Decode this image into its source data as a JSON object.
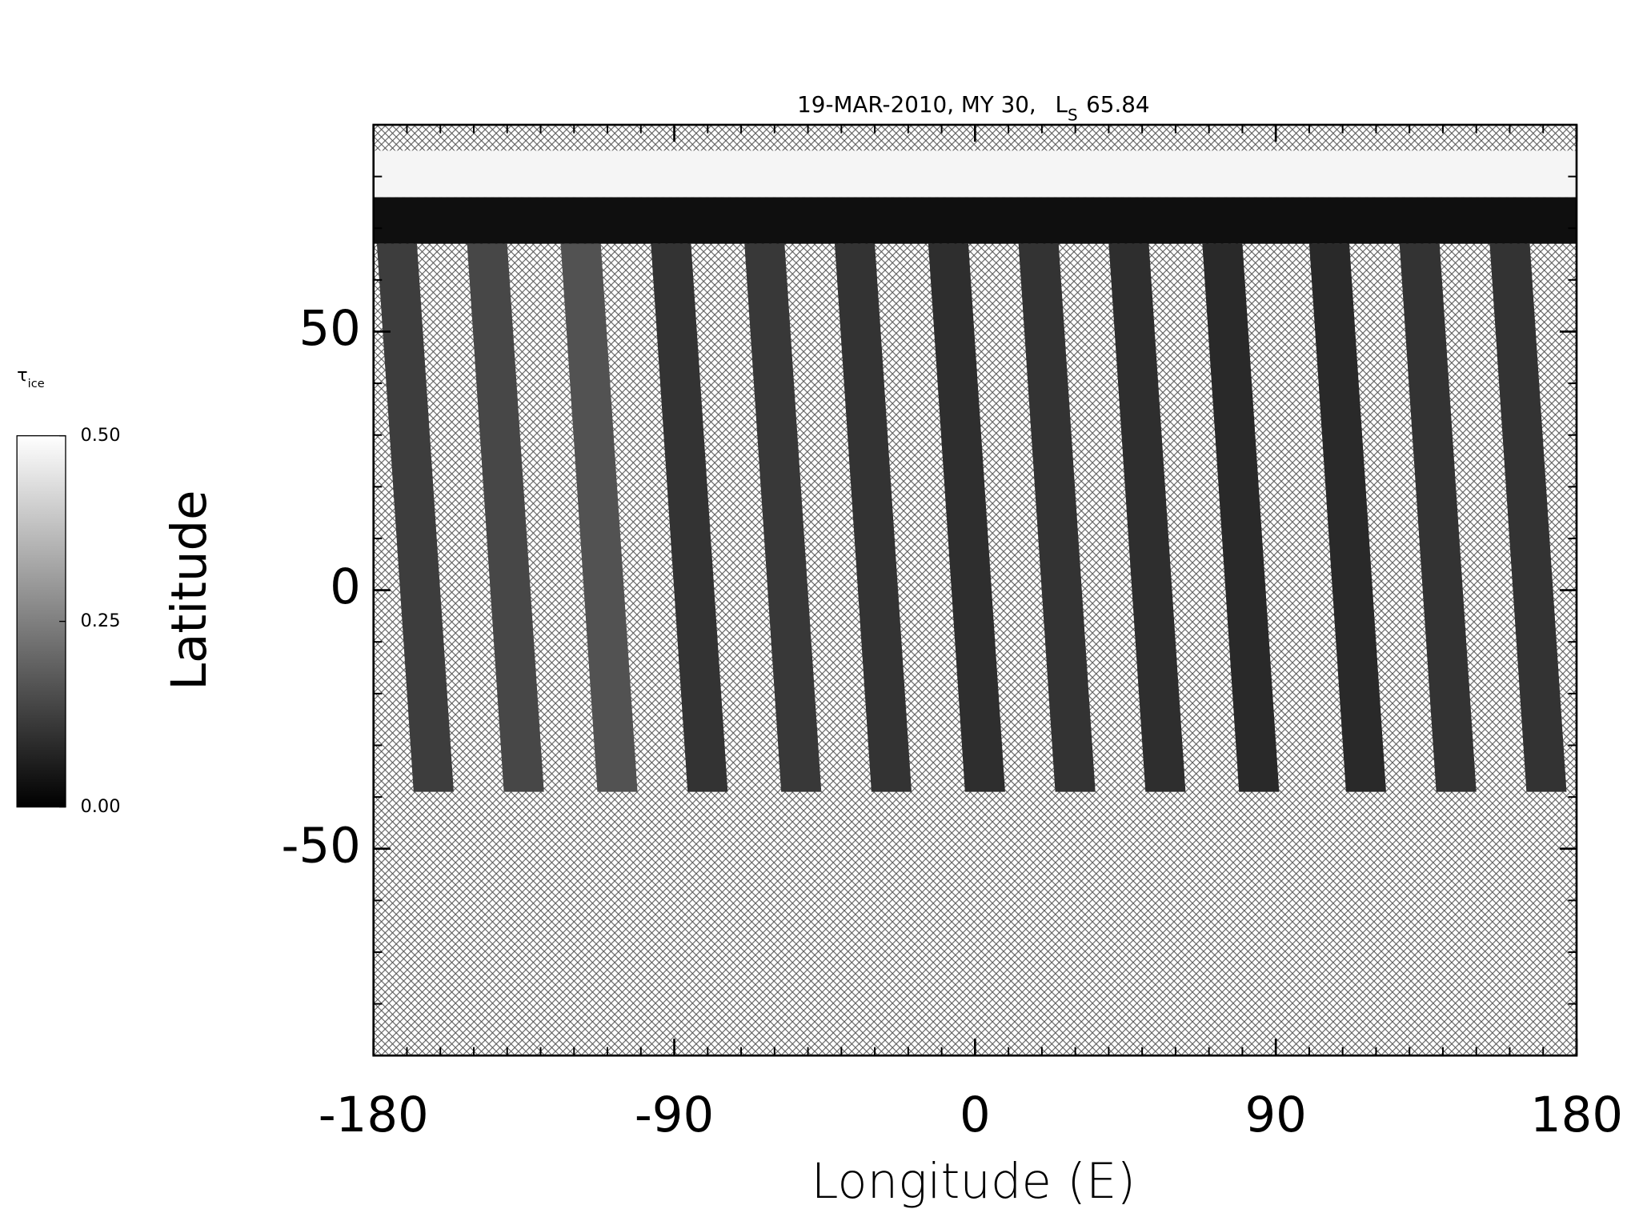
{
  "chart_data": {
    "type": "swath-map",
    "title": "19-MAR-2010, MY 30,",
    "title_ls_symbol": "L",
    "title_ls_subscript": "S",
    "title_ls_value": "65.84",
    "xlabel": "Longitude (E)",
    "ylabel": "Latitude",
    "xlim": [
      -180,
      180
    ],
    "ylim": [
      -90,
      90
    ],
    "xticks": [
      -180,
      -90,
      0,
      90,
      180
    ],
    "yticks": [
      -50,
      0,
      50
    ],
    "minor_tick_interval": 10,
    "colorbar": {
      "symbol": "τ",
      "subscript": "ice",
      "lim": [
        0,
        0.5
      ],
      "colors": [
        "#000000",
        "#ffffff"
      ],
      "ticks": [
        {
          "value": 0,
          "label": "0.00"
        },
        {
          "value": 0.25,
          "label": "0.25"
        },
        {
          "value": 0.5,
          "label": "0.50"
        }
      ]
    },
    "no_data_color": "#555555",
    "bands": [
      {
        "lat": [
          67,
          76
        ],
        "tau": 0.03
      },
      {
        "lat": [
          76,
          85
        ],
        "tau": 0.48
      }
    ],
    "swath_lat": [
      -39,
      67
    ],
    "swath_width": 12,
    "swaths": [
      {
        "lon_top": -173,
        "lon_bottom": -162,
        "tau": 0.12
      },
      {
        "lon_top": -146,
        "lon_bottom": -135,
        "tau": 0.14
      },
      {
        "lon_top": -118,
        "lon_bottom": -107,
        "tau": 0.16
      },
      {
        "lon_top": -91,
        "lon_bottom": -80,
        "tau": 0.1
      },
      {
        "lon_top": -63,
        "lon_bottom": -52,
        "tau": 0.11
      },
      {
        "lon_top": -36,
        "lon_bottom": -25,
        "tau": 0.1
      },
      {
        "lon_top": -8,
        "lon_bottom": 3,
        "tau": 0.09
      },
      {
        "lon_top": 19,
        "lon_bottom": 30,
        "tau": 0.1
      },
      {
        "lon_top": 46,
        "lon_bottom": 57,
        "tau": 0.09
      },
      {
        "lon_top": 74,
        "lon_bottom": 85,
        "tau": 0.08
      },
      {
        "lon_top": 106,
        "lon_bottom": 117,
        "tau": 0.08
      },
      {
        "lon_top": 133,
        "lon_bottom": 144,
        "tau": 0.1
      },
      {
        "lon_top": 160,
        "lon_bottom": 171,
        "tau": 0.1
      }
    ]
  }
}
